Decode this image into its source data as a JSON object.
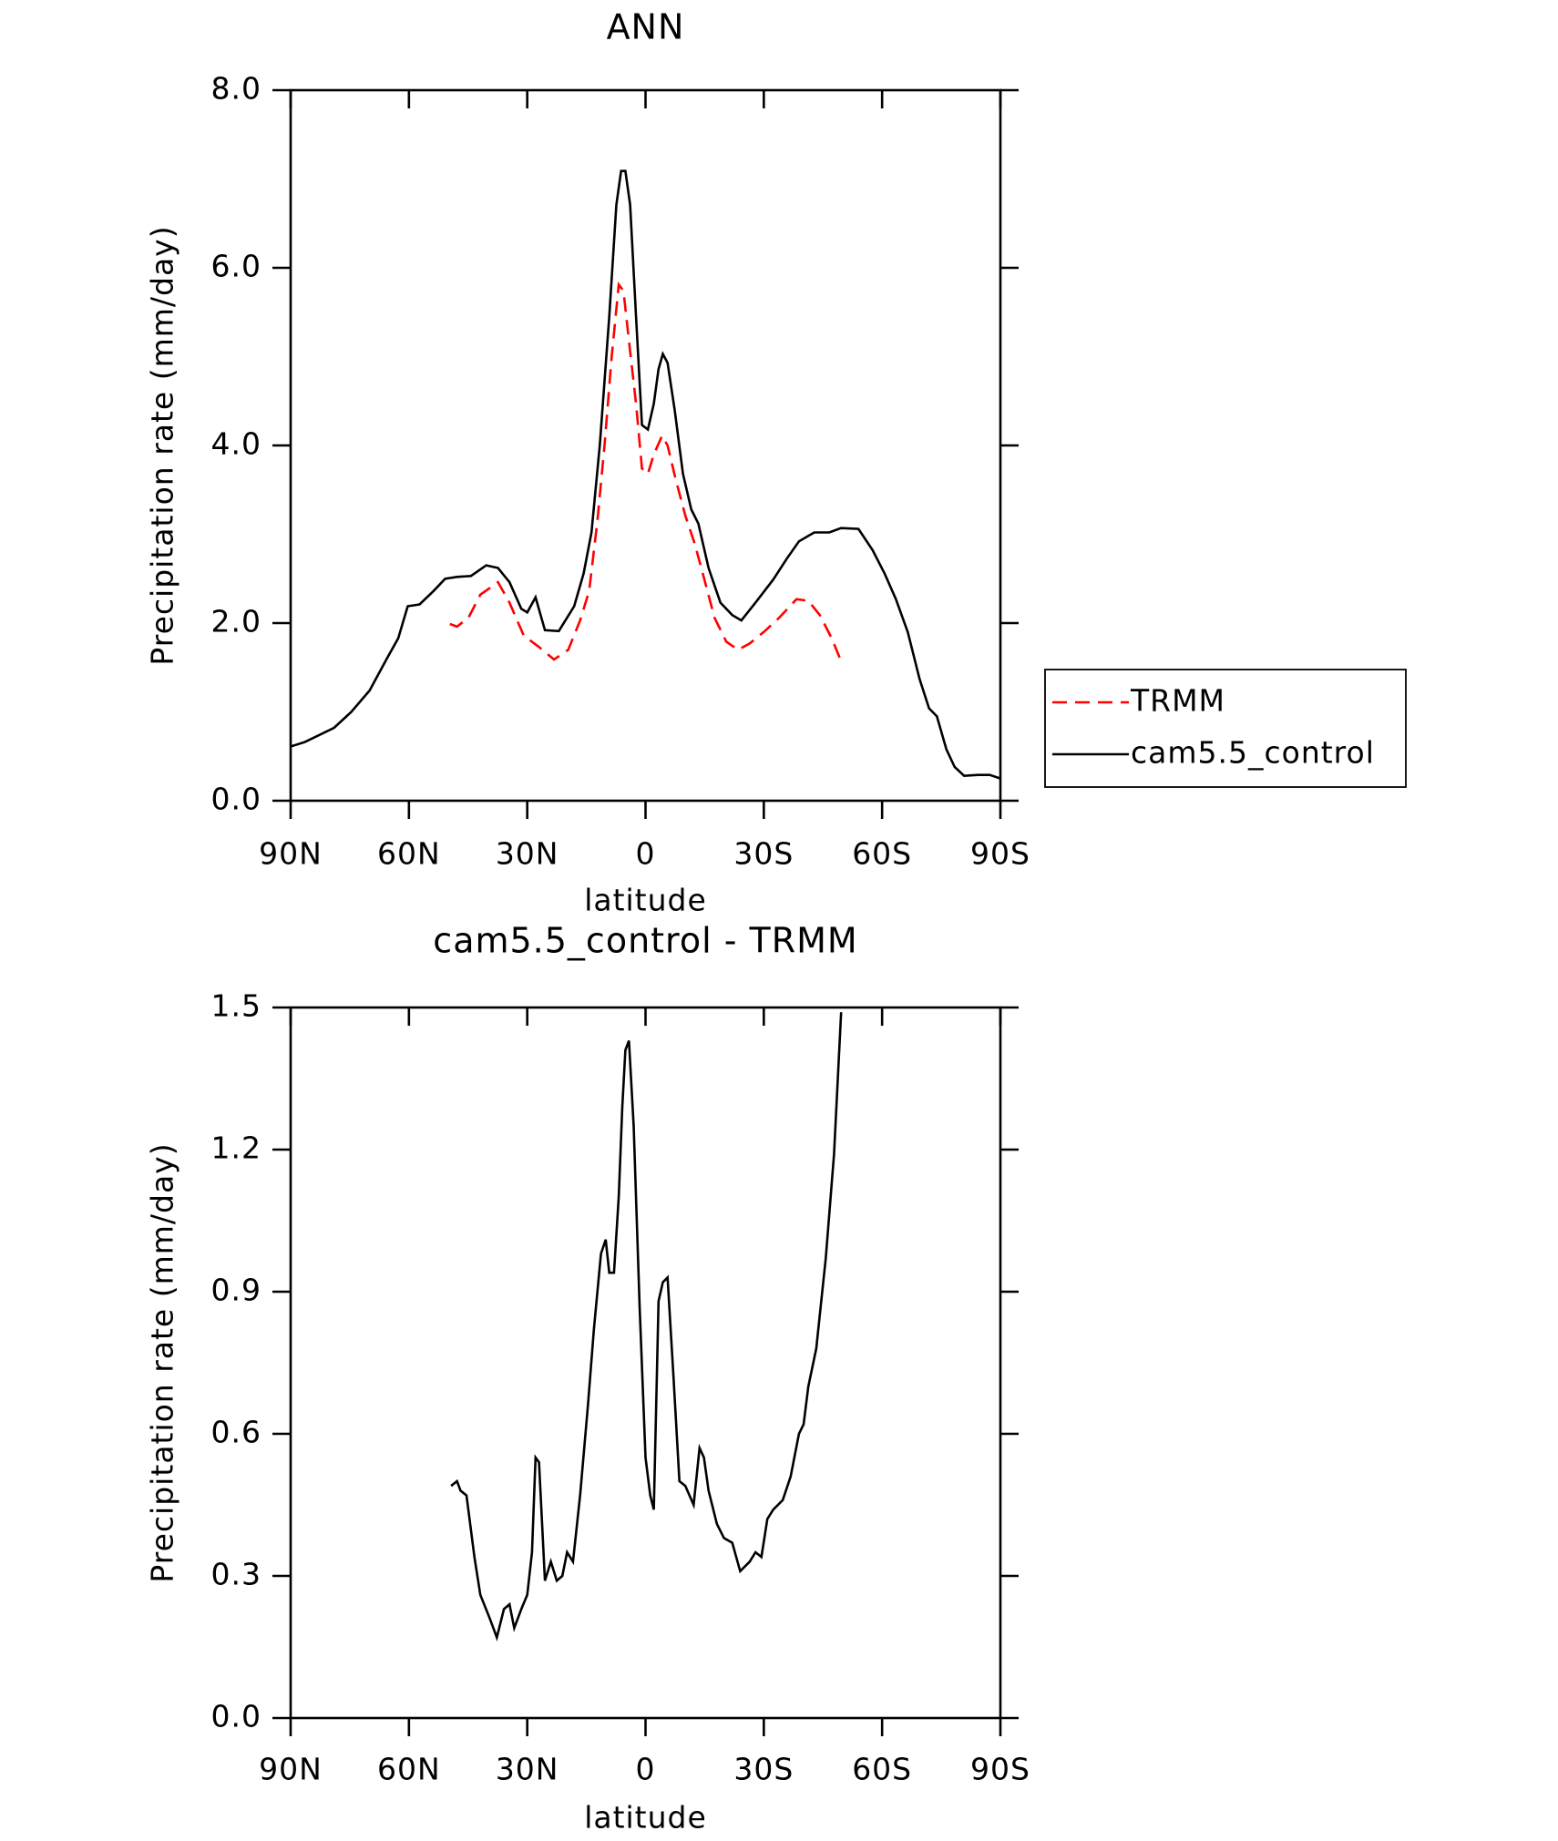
{
  "chart_data": [
    {
      "type": "line",
      "title": "ANN",
      "xlabel": "latitude",
      "ylabel": "Precipitation rate (mm/day)",
      "xlim": [
        90,
        -90
      ],
      "xticks": [
        {
          "value": 90,
          "label": "90N"
        },
        {
          "value": 60,
          "label": "60N"
        },
        {
          "value": 30,
          "label": "30N"
        },
        0,
        {
          "value": -30,
          "label": "30S"
        },
        {
          "value": -60,
          "label": "60S"
        },
        {
          "value": -90,
          "label": "90S"
        }
      ],
      "ylim": [
        0,
        8
      ],
      "yticks": [
        {
          "value": 0,
          "label": "0.0"
        },
        {
          "value": 2,
          "label": "2.0"
        },
        {
          "value": 4,
          "label": "4.0"
        },
        {
          "value": 6,
          "label": "6.0"
        },
        {
          "value": 8,
          "label": "8.0"
        }
      ],
      "legend": "right",
      "series": [
        {
          "name": "TRMM",
          "color": "#ff0000",
          "line_style": "dashed",
          "x": [
            49.6,
            47.8,
            44.9,
            41.9,
            37.4,
            34.5,
            30.9,
            27,
            23.2,
            19.6,
            16.6,
            14.3,
            12.2,
            10.4,
            8.6,
            6.8,
            5.6,
            3.9,
            2.4,
            0.9,
            -0.6,
            -2.1,
            -4.2,
            -5.6,
            -7.7,
            -10.1,
            -12.5,
            -14.5,
            -17.5,
            -20.5,
            -23.5,
            -26.4,
            -30,
            -33.9,
            -38.3,
            -41.3,
            -44.2,
            -47.2,
            -49.6
          ],
          "values": [
            1.99,
            1.96,
            2.06,
            2.32,
            2.46,
            2.23,
            1.86,
            1.73,
            1.59,
            1.7,
            2.03,
            2.36,
            3.15,
            4.0,
            4.99,
            5.81,
            5.74,
            5.06,
            4.47,
            3.74,
            3.68,
            3.9,
            4.11,
            4.0,
            3.61,
            3.21,
            2.89,
            2.56,
            2.06,
            1.79,
            1.7,
            1.77,
            1.9,
            2.06,
            2.27,
            2.25,
            2.09,
            1.83,
            1.57
          ]
        },
        {
          "name": "cam5.5_control",
          "color": "#000000",
          "line_style": "solid",
          "x": [
            90,
            86.4,
            79,
            74.6,
            70,
            65.6,
            62.7,
            60.3,
            57.3,
            53.8,
            50.8,
            47.8,
            44.3,
            40.4,
            37.4,
            34.5,
            31.5,
            30,
            27.9,
            25.5,
            22,
            18.1,
            15.7,
            13.7,
            11.6,
            9.2,
            7.4,
            6.2,
            5.1,
            3.9,
            2.4,
            0.9,
            -0.6,
            -2.1,
            -3.3,
            -4.4,
            -5.6,
            -7.4,
            -9.5,
            -11.6,
            -13.4,
            -16,
            -19,
            -22,
            -24.3,
            -27.9,
            -32.4,
            -35.9,
            -38.9,
            -42.8,
            -46.6,
            -49.6,
            -54,
            -57.6,
            -60.6,
            -63.5,
            -66.5,
            -69.5,
            -71.9,
            -73.9,
            -76.3,
            -78.4,
            -80.8,
            -84.3,
            -87.3,
            -90
          ],
          "values": [
            0.61,
            0.66,
            0.82,
            1.0,
            1.24,
            1.6,
            1.83,
            2.19,
            2.21,
            2.36,
            2.5,
            2.52,
            2.53,
            2.65,
            2.62,
            2.46,
            2.16,
            2.12,
            2.29,
            1.92,
            1.91,
            2.19,
            2.56,
            3.02,
            4.0,
            5.45,
            6.71,
            7.09,
            7.09,
            6.71,
            5.45,
            4.23,
            4.18,
            4.47,
            4.86,
            5.03,
            4.93,
            4.4,
            3.68,
            3.28,
            3.12,
            2.62,
            2.23,
            2.09,
            2.03,
            2.23,
            2.49,
            2.73,
            2.92,
            3.02,
            3.02,
            3.07,
            3.06,
            2.82,
            2.56,
            2.27,
            1.9,
            1.37,
            1.04,
            0.95,
            0.58,
            0.38,
            0.28,
            0.29,
            0.29,
            0.25
          ]
        }
      ]
    },
    {
      "type": "line",
      "title": "cam5.5_control - TRMM",
      "xlabel": "latitude",
      "ylabel": "Precipitation rate (mm/day)",
      "xlim": [
        90,
        -90
      ],
      "xticks": [
        {
          "value": 90,
          "label": "90N"
        },
        {
          "value": 60,
          "label": "60N"
        },
        {
          "value": 30,
          "label": "30N"
        },
        0,
        {
          "value": -30,
          "label": "30S"
        },
        {
          "value": -60,
          "label": "60S"
        },
        {
          "value": -90,
          "label": "90S"
        }
      ],
      "ylim": [
        0,
        1.5
      ],
      "yticks": [
        {
          "value": 0,
          "label": "0.0"
        },
        0.3,
        0.6,
        0.9,
        1.2,
        1.5
      ],
      "series": [
        {
          "color": "#000000",
          "line_style": "solid",
          "x": [
            49.3,
            47.8,
            46.9,
            45.4,
            43.4,
            41.9,
            39.5,
            37.7,
            35.9,
            34.5,
            33.3,
            31.5,
            30,
            28.8,
            27.9,
            27,
            25.5,
            24,
            22.5,
            21.1,
            19.9,
            18.4,
            16.6,
            14.6,
            13.1,
            11.3,
            10.1,
            9.2,
            8,
            6.8,
            5.9,
            5.1,
            4.2,
            3,
            1.5,
            0,
            -1.2,
            -2.1,
            -3.3,
            -4.4,
            -5.6,
            -7.1,
            -8.6,
            -10.1,
            -12.2,
            -13.7,
            -14.8,
            -16,
            -18.1,
            -19.9,
            -22,
            -24,
            -26.4,
            -27.9,
            -29.4,
            -30.9,
            -32.4,
            -34.8,
            -36.8,
            -38.9,
            -40.1,
            -41.3,
            -43.3,
            -45.7,
            -47.8,
            -49.6
          ],
          "values": [
            0.49,
            0.5,
            0.48,
            0.47,
            0.34,
            0.26,
            0.21,
            0.17,
            0.23,
            0.24,
            0.19,
            0.23,
            0.26,
            0.35,
            0.55,
            0.54,
            0.29,
            0.33,
            0.29,
            0.3,
            0.35,
            0.33,
            0.47,
            0.66,
            0.82,
            0.98,
            1.01,
            0.94,
            0.94,
            1.1,
            1.29,
            1.41,
            1.43,
            1.25,
            0.87,
            0.55,
            0.47,
            0.44,
            0.88,
            0.92,
            0.93,
            0.72,
            0.5,
            0.49,
            0.45,
            0.57,
            0.55,
            0.48,
            0.41,
            0.38,
            0.37,
            0.31,
            0.33,
            0.35,
            0.34,
            0.42,
            0.44,
            0.46,
            0.51,
            0.6,
            0.62,
            0.7,
            0.78,
            0.97,
            1.19,
            1.49
          ]
        }
      ]
    }
  ]
}
